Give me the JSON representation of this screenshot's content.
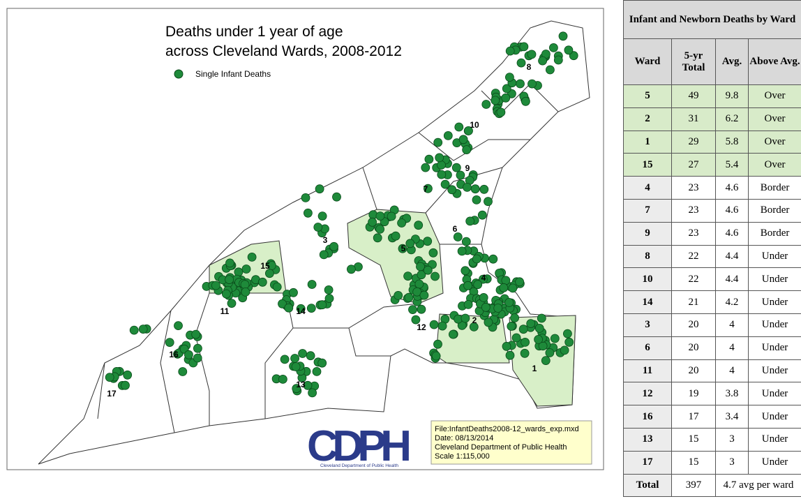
{
  "map": {
    "title": [
      "Deaths under 1 year of age",
      "across Cleveland Wards, 2008-2012"
    ],
    "legend": "Single Infant Deaths",
    "ward_labels": [
      "8",
      "10",
      "9",
      "7",
      "6",
      "3",
      "5",
      "15",
      "4",
      "11",
      "14",
      "2",
      "12",
      "16",
      "1",
      "13",
      "17"
    ],
    "logo": {
      "text": "CDPH",
      "subtitle": "Cleveland Department of Public Health"
    },
    "info": [
      "File:InfantDeaths2008-12_wards_exp.mxd",
      "Date: 08/13/2014",
      "Cleveland Department of Public Health",
      "Scale  1:115,000"
    ]
  },
  "table": {
    "title": "Infant and Newborn Deaths by Ward",
    "header": [
      "Ward",
      "5-yr Total",
      "Avg.",
      "Above Avg."
    ],
    "rows": [
      [
        "5",
        49,
        9.8,
        "Over"
      ],
      [
        "2",
        31,
        6.2,
        "Over"
      ],
      [
        "1",
        29,
        5.8,
        "Over"
      ],
      [
        "15",
        27,
        5.4,
        "Over"
      ],
      [
        "4",
        23,
        4.6,
        "Border"
      ],
      [
        "7",
        23,
        4.6,
        "Border"
      ],
      [
        "9",
        23,
        4.6,
        "Border"
      ],
      [
        "8",
        22,
        4.4,
        "Under"
      ],
      [
        "10",
        22,
        4.4,
        "Under"
      ],
      [
        "14",
        21,
        4.2,
        "Under"
      ],
      [
        "3",
        20,
        4,
        "Under"
      ],
      [
        "6",
        20,
        4,
        "Under"
      ],
      [
        "11",
        20,
        4,
        "Under"
      ],
      [
        "12",
        19,
        3.8,
        "Under"
      ],
      [
        "16",
        17,
        3.4,
        "Under"
      ],
      [
        "13",
        15,
        3,
        "Under"
      ],
      [
        "17",
        15,
        3,
        "Under"
      ]
    ],
    "total": [
      "Total",
      397,
      "4.7 avg per ward"
    ]
  }
}
